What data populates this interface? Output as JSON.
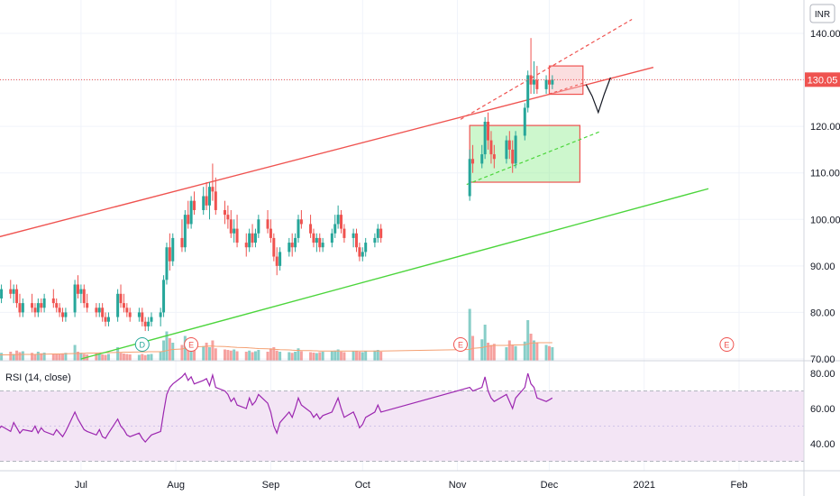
{
  "chart_data": [
    {
      "type": "candlestick",
      "currency_label": "INR",
      "last_price": "130.05",
      "y_ticks": [
        "140.00",
        "130.00",
        "120.00",
        "110.00",
        "100.00",
        "90.00",
        "80.00",
        "70.00"
      ],
      "x_ticks": [
        "Jul",
        "Aug",
        "Sep",
        "Oct",
        "Nov",
        "Dec",
        "2021",
        "Feb"
      ],
      "ylim": [
        70,
        142
      ],
      "grid": true,
      "colors": {
        "up": "#26a69a",
        "down": "#ef5350",
        "volume_ma": "#f4a072"
      },
      "events": [
        {
          "label": "D",
          "type": "dividend",
          "date": "2020-07-21",
          "color": "#26a69a"
        },
        {
          "label": "E",
          "type": "earnings",
          "date": "2020-08-06",
          "color": "#ef5350"
        },
        {
          "label": "E",
          "type": "earnings",
          "date": "2020-11-02",
          "color": "#ef5350"
        },
        {
          "label": "E",
          "type": "earnings",
          "date": "2021-01-28",
          "color": "#ef5350"
        }
      ],
      "drawings": {
        "upper_trendline": {
          "color": "#ef5350",
          "from": [
            "2020-06-01",
            95.7
          ],
          "to": [
            "2021-01-04",
            132.7
          ]
        },
        "lower_trendline": {
          "color": "#4cd53c",
          "from": [
            "2020-07-01",
            70
          ],
          "to": [
            "2021-01-22",
            106.6
          ]
        },
        "green_rectangle": {
          "color": "#90ee90",
          "border": "#ef5350",
          "from": [
            "2020-11-05",
            120.2
          ],
          "to": [
            "2020-12-11",
            108.0
          ]
        },
        "red_rectangle": {
          "color": "#f7b6b9",
          "border": "#ef5350",
          "from": [
            "2020-12-01",
            133.0
          ],
          "to": [
            "2020-12-12",
            126.9
          ]
        }
      },
      "candles": [
        [
          95,
          96,
          90,
          92
        ],
        [
          92,
          94,
          88,
          89
        ],
        [
          89,
          91,
          84,
          86
        ],
        [
          86,
          88,
          81,
          83
        ],
        [
          83,
          86,
          82,
          85
        ],
        [
          85,
          87,
          83,
          84
        ],
        [
          84,
          86,
          82,
          85
        ],
        [
          85,
          86,
          81,
          82
        ],
        [
          82,
          84,
          79,
          80
        ],
        [
          80,
          83,
          79,
          82
        ],
        [
          82,
          84,
          80,
          81
        ],
        [
          81,
          82,
          79,
          80
        ],
        [
          80,
          83,
          79,
          82
        ],
        [
          82,
          83,
          80,
          81
        ],
        [
          81,
          84,
          80,
          83
        ],
        [
          83,
          85,
          81,
          82
        ],
        [
          82,
          83,
          80,
          81
        ],
        [
          81,
          82,
          79,
          80
        ],
        [
          80,
          81,
          78,
          79
        ],
        [
          79,
          81,
          78,
          80
        ],
        [
          80,
          87,
          79,
          86
        ],
        [
          86,
          88,
          83,
          84
        ],
        [
          84,
          86,
          82,
          85
        ],
        [
          85,
          86,
          81,
          82
        ],
        [
          82,
          84,
          80,
          81
        ],
        [
          81,
          82,
          79,
          80
        ],
        [
          80,
          82,
          79,
          81
        ],
        [
          81,
          82,
          78,
          79
        ],
        [
          79,
          80,
          77,
          78
        ],
        [
          78,
          80,
          77,
          79
        ],
        [
          79,
          85,
          78,
          84
        ],
        [
          84,
          86,
          81,
          82
        ],
        [
          82,
          84,
          80,
          81
        ],
        [
          81,
          82,
          79,
          80
        ],
        [
          80,
          81,
          78,
          79
        ],
        [
          79,
          81,
          78,
          80
        ],
        [
          80,
          81,
          77,
          78
        ],
        [
          78,
          79,
          76,
          77
        ],
        [
          77,
          79,
          76,
          78
        ],
        [
          78,
          80,
          77,
          79
        ],
        [
          79,
          81,
          77,
          80
        ],
        [
          80,
          88,
          79,
          87
        ],
        [
          87,
          95,
          86,
          94
        ],
        [
          94,
          97,
          89,
          91
        ],
        [
          91,
          97,
          90,
          96
        ],
        [
          96,
          100,
          93,
          94
        ],
        [
          94,
          102,
          93,
          101
        ],
        [
          101,
          104,
          98,
          99
        ],
        [
          99,
          105,
          98,
          104
        ],
        [
          104,
          106,
          101,
          102
        ],
        [
          102,
          107,
          101,
          105
        ],
        [
          105,
          108,
          102,
          103
        ],
        [
          103,
          108,
          100,
          107
        ],
        [
          107,
          112,
          104,
          106
        ],
        [
          106,
          109,
          101,
          102
        ],
        [
          102,
          104,
          99,
          101
        ],
        [
          101,
          103,
          98,
          100
        ],
        [
          100,
          102,
          96,
          97
        ],
        [
          97,
          100,
          95,
          98
        ],
        [
          98,
          101,
          94,
          95
        ],
        [
          95,
          97,
          92,
          94
        ],
        [
          94,
          98,
          93,
          97
        ],
        [
          97,
          99,
          94,
          95
        ],
        [
          95,
          98,
          94,
          97
        ],
        [
          97,
          101,
          96,
          100
        ],
        [
          100,
          102,
          97,
          98
        ],
        [
          98,
          100,
          95,
          96
        ],
        [
          96,
          97,
          91,
          92
        ],
        [
          92,
          94,
          88,
          90
        ],
        [
          90,
          94,
          89,
          93
        ],
        [
          93,
          96,
          92,
          95
        ],
        [
          95,
          97,
          92,
          94
        ],
        [
          94,
          97,
          93,
          96
        ],
        [
          96,
          101,
          95,
          100
        ],
        [
          100,
          102,
          98,
          99
        ],
        [
          99,
          101,
          96,
          97
        ],
        [
          97,
          98,
          94,
          95
        ],
        [
          95,
          97,
          93,
          96
        ],
        [
          96,
          97,
          93,
          94
        ],
        [
          94,
          96,
          93,
          95
        ],
        [
          95,
          98,
          94,
          97
        ],
        [
          97,
          101,
          96,
          99
        ],
        [
          99,
          103,
          98,
          101
        ],
        [
          101,
          102,
          97,
          98
        ],
        [
          98,
          99,
          95,
          96
        ],
        [
          96,
          98,
          94,
          97
        ],
        [
          97,
          98,
          93,
          94
        ],
        [
          94,
          95,
          91,
          92
        ],
        [
          92,
          94,
          91,
          93
        ],
        [
          93,
          96,
          92,
          95
        ],
        [
          95,
          97,
          94,
          96
        ],
        [
          96,
          99,
          95,
          98
        ],
        [
          98,
          99,
          95,
          96
        ],
        [
          105,
          115,
          104,
          113
        ],
        [
          113,
          116,
          110,
          112
        ],
        [
          112,
          116,
          111,
          114
        ],
        [
          114,
          122,
          113,
          121
        ],
        [
          121,
          123,
          115,
          117
        ],
        [
          117,
          119,
          112,
          114
        ],
        [
          114,
          116,
          111,
          113
        ],
        [
          113,
          118,
          112,
          117
        ],
        [
          117,
          119,
          113,
          115
        ],
        [
          115,
          117,
          110,
          112
        ],
        [
          112,
          119,
          111,
          118
        ],
        [
          118,
          125,
          117,
          124
        ],
        [
          124,
          132,
          123,
          131
        ],
        [
          131,
          139,
          127,
          129
        ],
        [
          129,
          134,
          127,
          130
        ],
        [
          130,
          133,
          127,
          128
        ],
        [
          128,
          131,
          127,
          130
        ],
        [
          130,
          131,
          127,
          129
        ],
        [
          129,
          131,
          128,
          130.05
        ]
      ],
      "candle_dates": [
        "2020-06-01",
        "2020-06-02",
        "2020-06-03",
        "2020-06-04",
        "2020-06-05",
        "2020-06-08",
        "2020-06-09",
        "2020-06-10",
        "2020-06-11",
        "2020-06-12",
        "2020-06-15",
        "2020-06-16",
        "2020-06-17",
        "2020-06-18",
        "2020-06-19",
        "2020-06-22",
        "2020-06-23",
        "2020-06-24",
        "2020-06-25",
        "2020-06-26",
        "2020-06-29",
        "2020-06-30",
        "2020-07-01",
        "2020-07-02",
        "2020-07-03",
        "2020-07-06",
        "2020-07-07",
        "2020-07-08",
        "2020-07-09",
        "2020-07-10",
        "2020-07-13",
        "2020-07-14",
        "2020-07-15",
        "2020-07-16",
        "2020-07-17",
        "2020-07-20",
        "2020-07-21",
        "2020-07-22",
        "2020-07-23",
        "2020-07-24",
        "2020-07-27",
        "2020-07-28",
        "2020-07-29",
        "2020-07-30",
        "2020-07-31",
        "2020-08-03",
        "2020-08-04",
        "2020-08-05",
        "2020-08-06",
        "2020-08-07",
        "2020-08-10",
        "2020-08-11",
        "2020-08-12",
        "2020-08-13",
        "2020-08-14",
        "2020-08-17",
        "2020-08-18",
        "2020-08-19",
        "2020-08-20",
        "2020-08-21",
        "2020-08-24",
        "2020-08-25",
        "2020-08-26",
        "2020-08-27",
        "2020-08-28",
        "2020-08-31",
        "2020-09-01",
        "2020-09-02",
        "2020-09-03",
        "2020-09-04",
        "2020-09-07",
        "2020-09-08",
        "2020-09-09",
        "2020-09-10",
        "2020-09-11",
        "2020-09-14",
        "2020-09-15",
        "2020-09-16",
        "2020-09-17",
        "2020-09-18",
        "2020-09-21",
        "2020-09-22",
        "2020-09-23",
        "2020-09-24",
        "2020-09-25",
        "2020-09-28",
        "2020-09-29",
        "2020-09-30",
        "2020-10-01",
        "2020-10-02",
        "2020-10-05",
        "2020-10-06",
        "2020-10-07",
        "2020-11-05",
        "2020-11-06",
        "2020-11-09",
        "2020-11-10",
        "2020-11-11",
        "2020-11-12",
        "2020-11-13",
        "2020-11-17",
        "2020-11-18",
        "2020-11-19",
        "2020-11-20",
        "2020-11-23",
        "2020-11-24",
        "2020-11-25",
        "2020-11-26",
        "2020-11-27",
        "2020-11-30",
        "2020-12-01",
        "2020-12-02"
      ],
      "volume_ylim": [
        0,
        400
      ],
      "volume": [
        60,
        55,
        45,
        50,
        35,
        40,
        30,
        45,
        38,
        42,
        35,
        30,
        40,
        33,
        36,
        30,
        28,
        32,
        30,
        35,
        70,
        40,
        35,
        30,
        28,
        34,
        30,
        28,
        26,
        30,
        60,
        35,
        32,
        30,
        28,
        26,
        30,
        25,
        28,
        30,
        40,
        90,
        130,
        100,
        80,
        70,
        110,
        75,
        95,
        70,
        65,
        80,
        60,
        90,
        55,
        50,
        48,
        45,
        50,
        42,
        40,
        45,
        38,
        42,
        48,
        40,
        55,
        60,
        45,
        40,
        38,
        35,
        40,
        55,
        42,
        38,
        36,
        34,
        38,
        40,
        42,
        45,
        50,
        40,
        38,
        42,
        44,
        40,
        38,
        42,
        45,
        48,
        40,
        230,
        110,
        95,
        160,
        80,
        70,
        75,
        60,
        90,
        70,
        65,
        85,
        180,
        120,
        90,
        80,
        70,
        65,
        60
      ],
      "volume_ma": [
        25,
        25,
        25,
        26,
        26,
        26,
        27,
        27,
        27,
        28,
        28,
        28,
        29,
        29,
        29,
        30,
        30,
        30,
        31,
        31,
        32,
        32,
        33,
        33,
        34,
        34,
        35,
        35,
        36,
        36,
        37,
        37,
        38,
        38,
        38,
        39,
        39,
        39,
        40,
        40,
        40,
        42,
        45,
        48,
        50,
        52,
        55,
        58,
        60,
        62,
        63,
        64,
        65,
        65,
        64,
        63,
        62,
        61,
        60,
        59,
        58,
        57,
        56,
        55,
        54,
        53,
        52,
        51,
        50,
        49,
        48,
        47,
        46,
        46,
        45,
        45,
        44,
        44,
        43,
        43,
        43,
        43,
        43,
        43,
        43,
        43,
        43,
        43,
        43,
        43,
        43,
        43,
        43,
        50,
        55,
        58,
        62,
        64,
        66,
        68,
        68,
        69,
        70,
        70,
        71,
        75,
        78,
        79,
        80,
        80,
        80,
        80
      ],
      "volume_max": [
        80,
        85,
        75
      ]
    },
    {
      "type": "line",
      "title": "RSI (14, close)",
      "y_ticks": [
        "80.00",
        "60.00",
        "40.00"
      ],
      "ylim": [
        25,
        85
      ],
      "bands": [
        70,
        30
      ],
      "series": [
        {
          "values": [
            62,
            58,
            54,
            48,
            50,
            47,
            52,
            49,
            46,
            48,
            47,
            50,
            46,
            49,
            47,
            45,
            48,
            46,
            44,
            47,
            58,
            54,
            51,
            48,
            47,
            45,
            48,
            44,
            43,
            46,
            54,
            50,
            48,
            45,
            44,
            46,
            43,
            41,
            43,
            45,
            47,
            58,
            68,
            72,
            74,
            78,
            80,
            76,
            78,
            74,
            76,
            77,
            73,
            79,
            72,
            70,
            68,
            64,
            66,
            62,
            60,
            66,
            62,
            64,
            68,
            63,
            58,
            50,
            46,
            52,
            58,
            55,
            60,
            66,
            62,
            58,
            55,
            57,
            54,
            56,
            58,
            62,
            66,
            60,
            55,
            58,
            54,
            49,
            51,
            55,
            58,
            62,
            58,
            72,
            70,
            72,
            78,
            70,
            66,
            64,
            68,
            64,
            60,
            66,
            72,
            80,
            74,
            72,
            66,
            64,
            65,
            66
          ]
        }
      ],
      "colors": {
        "line": "#9c27b0",
        "band": "#e1bee7"
      }
    }
  ]
}
